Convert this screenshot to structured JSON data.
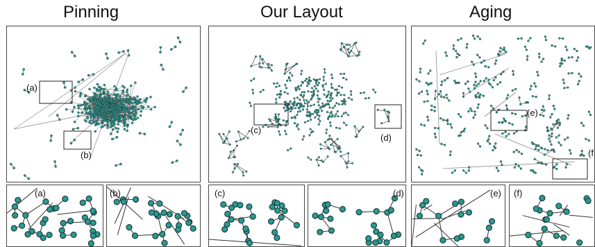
{
  "titles": {
    "pinning": "Pinning",
    "ours": "Our Layout",
    "aging": "Aging"
  },
  "labels": {
    "a": "(a)",
    "b": "(b)",
    "c": "(c)",
    "d": "(d)",
    "e": "(e)",
    "f": "(f"
  },
  "zoom_labels": {
    "a": "(a)",
    "b": "(b)",
    "c": "(c)",
    "d": "(d)",
    "e": "(e)",
    "f": "(f)"
  },
  "colors": {
    "node": "#2a9a93",
    "node_stroke": "#1d3d3a",
    "edge": "#333333",
    "long_edge": "#888888",
    "frame": "#444444"
  }
}
